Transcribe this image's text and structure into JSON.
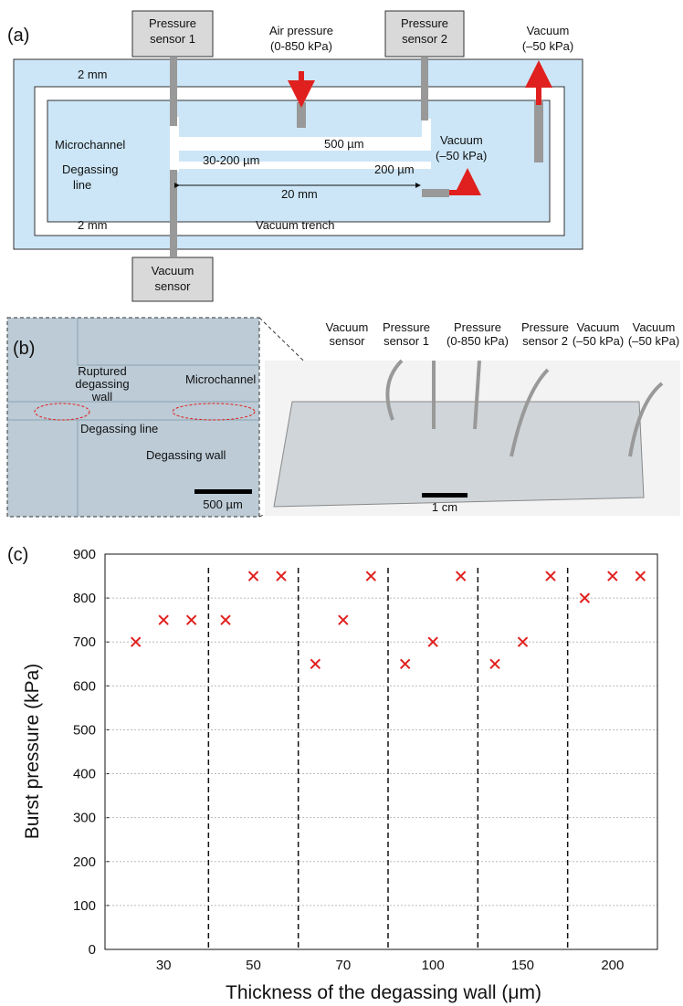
{
  "panel_a": {
    "label": "(a)",
    "pressure_sensor_1": [
      "Pressure",
      "sensor 1"
    ],
    "air_pressure": [
      "Air pressure",
      "(0-850 kPa)"
    ],
    "pressure_sensor_2": [
      "Pressure",
      "sensor 2"
    ],
    "vacuum_top": [
      "Vacuum",
      "(–50 kPa)"
    ],
    "gap_top": "2 mm",
    "channel_width": "500 µm",
    "microchannel": "Microchannel",
    "wall_thickness": "30-200 µm",
    "degassing_line": [
      "Degassing",
      "line"
    ],
    "line_width": "200 µm",
    "length": "20 mm",
    "vacuum_right": [
      "Vacuum",
      "(–50 kPa)"
    ],
    "gap_bottom": "2 mm",
    "vacuum_trench": "Vacuum trench",
    "vacuum_sensor": [
      "Vacuum",
      "sensor"
    ]
  },
  "panel_b": {
    "label": "(b)",
    "ruptured": [
      "Ruptured",
      "degassing",
      "wall"
    ],
    "microchannel": "Microchannel",
    "degassing_line": "Degassing line",
    "degassing_wall": "Degassing wall",
    "scale_left": "500 µm",
    "vacuum_sensor": [
      "Vacuum",
      "sensor"
    ],
    "pressure_sensor_1": [
      "Pressure",
      "sensor 1"
    ],
    "pressure": [
      "Pressure",
      "(0-850 kPa)"
    ],
    "pressure_sensor_2": [
      "Pressure",
      "sensor 2"
    ],
    "vacuum_1": [
      "Vacuum",
      "(–50 kPa)"
    ],
    "vacuum_2": [
      "Vacuum",
      "(–50 kPa)"
    ],
    "scale_right": "1 cm"
  },
  "chart_data": {
    "type": "scatter",
    "panel_label": "(c)",
    "x_label": "Thickness of the degassing wall (μm)",
    "y_label": "Burst pressure (kPa)",
    "categories": [
      "30",
      "50",
      "70",
      "100",
      "150",
      "200"
    ],
    "values": [
      [
        700,
        750,
        750
      ],
      [
        750,
        850,
        850
      ],
      [
        650,
        750,
        850
      ],
      [
        650,
        700,
        850
      ],
      [
        650,
        700,
        850
      ],
      [
        800,
        850,
        850
      ]
    ],
    "color": "#e0201e",
    "ylim": [
      0,
      900
    ],
    "yticks": [
      0,
      100,
      200,
      300,
      400,
      500,
      600,
      700,
      800,
      900
    ],
    "grid": true
  }
}
